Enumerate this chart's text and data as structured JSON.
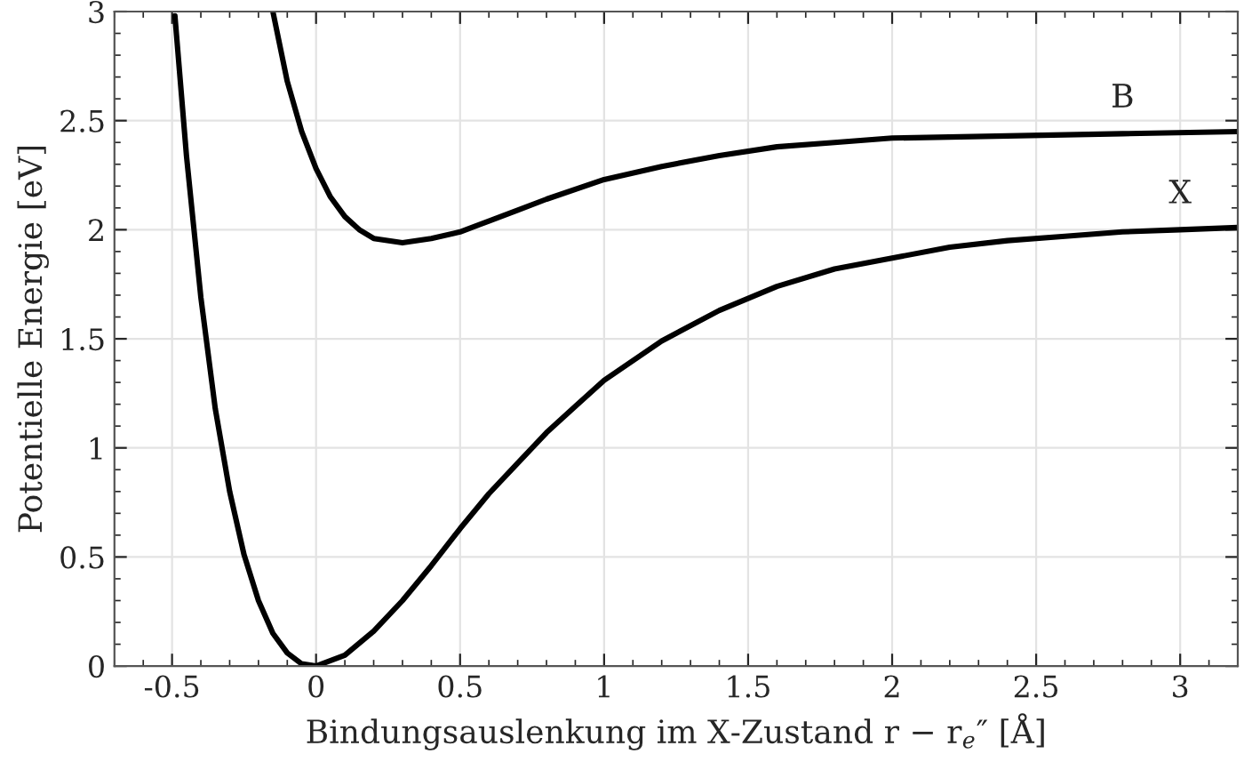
{
  "chart_data": {
    "type": "line",
    "xlabel": "Bindungsauslenkung im X-Zustand r − r$_{e}$″ [Å]",
    "ylabel": "Potentielle Energie [eV]",
    "series": [
      {
        "name": "B",
        "color": "#000000",
        "x": [
          -0.15,
          -0.1,
          -0.05,
          0,
          0.05,
          0.1,
          0.15,
          0.2,
          0.3,
          0.4,
          0.5,
          0.6,
          0.7,
          0.8,
          1.0,
          1.2,
          1.4,
          1.6,
          1.8,
          2.0,
          2.4,
          2.8,
          3.2
        ],
        "values": [
          3.0,
          2.68,
          2.45,
          2.28,
          2.15,
          2.06,
          2.0,
          1.96,
          1.94,
          1.96,
          1.99,
          2.04,
          2.09,
          2.14,
          2.23,
          2.29,
          2.34,
          2.38,
          2.4,
          2.42,
          2.43,
          2.44,
          2.45
        ]
      },
      {
        "name": "X",
        "color": "#000000",
        "x": [
          -0.49,
          -0.45,
          -0.4,
          -0.35,
          -0.3,
          -0.25,
          -0.2,
          -0.15,
          -0.1,
          -0.05,
          0,
          0.1,
          0.2,
          0.3,
          0.4,
          0.5,
          0.6,
          0.7,
          0.8,
          0.9,
          1.0,
          1.2,
          1.4,
          1.6,
          1.8,
          2.0,
          2.2,
          2.4,
          2.6,
          2.8,
          3.0,
          3.2
        ],
        "values": [
          2.98,
          2.34,
          1.69,
          1.18,
          0.8,
          0.51,
          0.3,
          0.15,
          0.06,
          0.01,
          0,
          0.05,
          0.16,
          0.3,
          0.46,
          0.63,
          0.79,
          0.93,
          1.07,
          1.19,
          1.31,
          1.49,
          1.63,
          1.74,
          1.82,
          1.87,
          1.92,
          1.95,
          1.97,
          1.99,
          2.0,
          2.01
        ]
      }
    ],
    "xlim": [
      -0.7,
      3.2
    ],
    "ylim": [
      0,
      3
    ],
    "xticks": [
      -0.5,
      0,
      0.5,
      1,
      1.5,
      2,
      2.5,
      3
    ],
    "yticks": [
      0,
      0.5,
      1,
      1.5,
      2,
      2.5,
      3
    ],
    "grid": true,
    "legend": false,
    "marker": "none",
    "line_style": "solid"
  }
}
